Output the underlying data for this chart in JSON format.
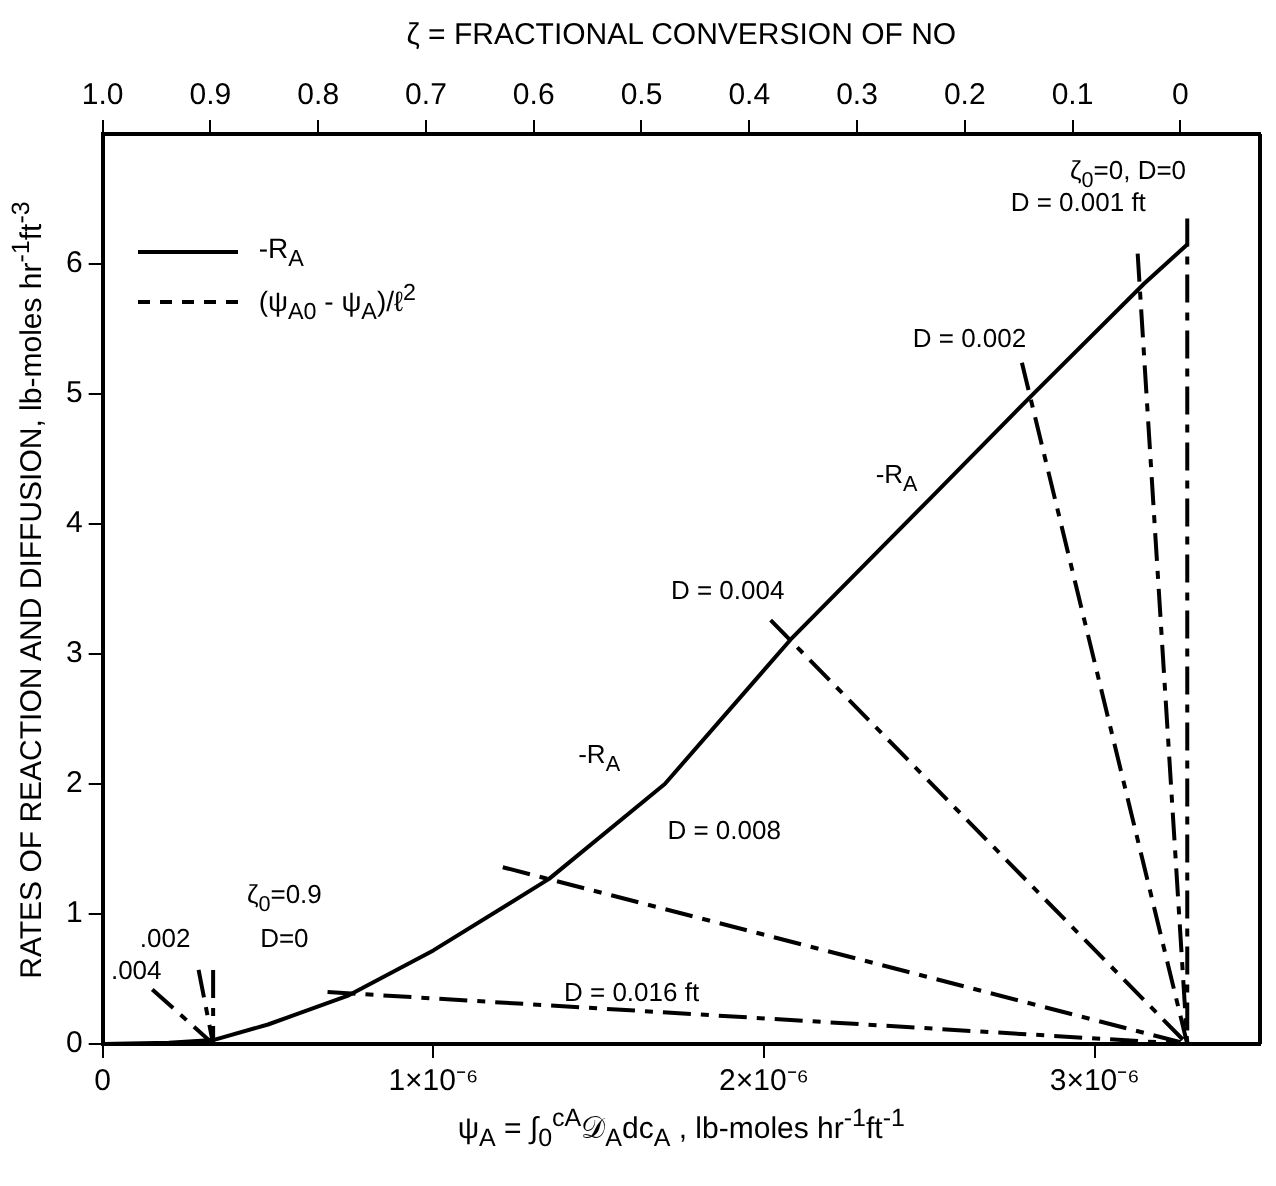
{
  "chart_data": {
    "type": "line",
    "xlabel": "ψ$_{A}$ = ∫$_{0}$$^{cA}$𝒟$_{A}$dc$_{A}$ ,   lb-moles hr$^{-1}$ft$^{-1}$",
    "ylabel": "RATES OF REACTION AND DIFFUSION, lb-moles hr$^{-1}$ft$^{-3}$",
    "x2label": "ζ = FRACTIONAL CONVERSION OF NO",
    "xlim": [
      0,
      3.5e-06
    ],
    "xticks": [
      0,
      {
        "value": 1e-06,
        "label": "1×10⁻⁶"
      },
      {
        "value": 2e-06,
        "label": "2×10⁻⁶"
      },
      {
        "value": 3e-06,
        "label": "3×10⁻⁶"
      }
    ],
    "x2lim": [
      1.0,
      -0.074
    ],
    "x2ticks": [
      {
        "value": 1,
        "label": "1.0"
      },
      0.9,
      0.8,
      0.7,
      0.6,
      0.5,
      0.4,
      0.3,
      0.2,
      0.1,
      0
    ],
    "ylim": [
      0,
      7
    ],
    "yticks": [
      0,
      1,
      2,
      3,
      4,
      5,
      6
    ],
    "grid": false,
    "legend": "top left",
    "marker": "none",
    "series": [
      {
        "name": "-R$_{A}$",
        "color": "#000000",
        "line_style": "solid",
        "x": [
          0,
          2e-07,
          3.34e-07,
          5e-07,
          7.4e-07,
          1e-06,
          1.35e-06,
          1.7e-06,
          2.08e-06,
          2.5e-06,
          2.81e-06,
          3.15e-06,
          3.28e-06
        ],
        "values": [
          0,
          0.01,
          0.03,
          0.15,
          0.37,
          0.72,
          1.27,
          2.0,
          3.11,
          4.19,
          4.99,
          5.85,
          6.15
        ]
      },
      {
        "name": "(ψ$_{A0}$ - ψ$_{A}$)/ℓ$^{2}$",
        "color": "#000000",
        "line_style": "dashed",
        "x": [
          3.28e-06,
          3.28e-06,
          null,
          3.13e-06,
          3.28e-06,
          null,
          2.78e-06,
          3.28e-06,
          null,
          2.02e-06,
          3.28e-06,
          null,
          1.21e-06,
          3.28e-06,
          null,
          6.8e-07,
          3.28e-06,
          null,
          3.34e-07,
          3.34e-07,
          null,
          2.9e-07,
          3.34e-07,
          null,
          1.5e-07,
          3.34e-07
        ],
        "values": [
          6.35,
          0,
          null,
          6.08,
          0,
          null,
          5.24,
          0,
          null,
          3.26,
          0,
          null,
          1.36,
          0,
          null,
          0.4,
          0,
          null,
          0.57,
          0,
          null,
          0.57,
          0,
          null,
          0.42,
          0
        ]
      }
    ],
    "annotations": [
      "ζ$_{0}$=0, D=0",
      "D = 0.001 ft",
      "D = 0.002",
      "D = 0.004",
      "D = 0.008",
      "D = 0.016 ft",
      "-R$_{A}$",
      "-R$_{A}$",
      "ζ$_{0}$=0.9",
      "D=0",
      ".002",
      ".004"
    ]
  }
}
